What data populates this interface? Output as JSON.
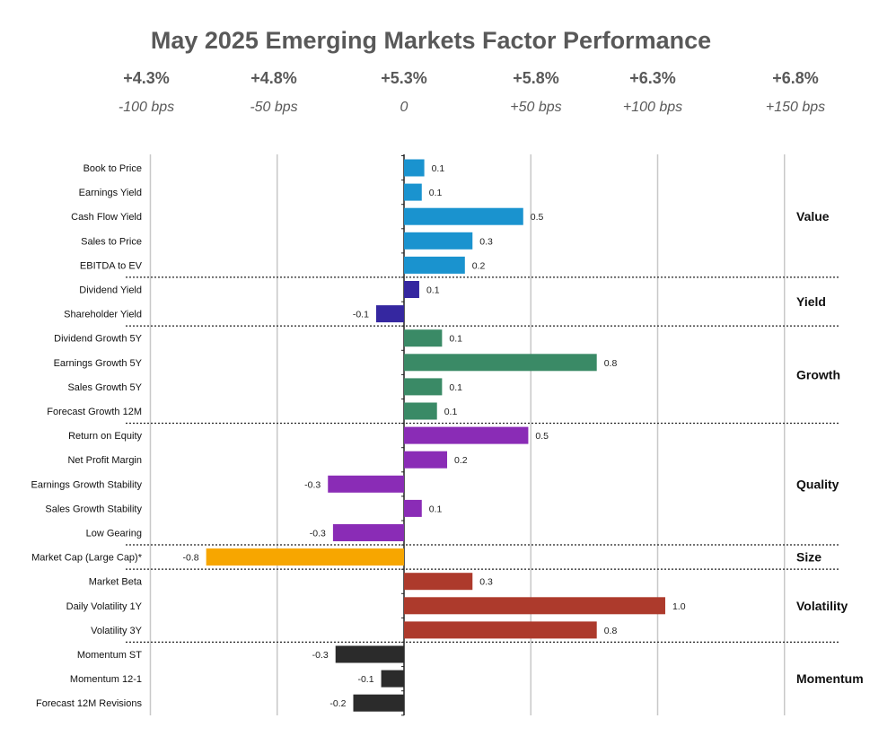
{
  "chart_data": {
    "type": "bar",
    "orientation": "horizontal",
    "title": "May 2025 Emerging Markets Factor Performance",
    "scenarios": [
      {
        "top": "+4.3%",
        "bottom": "-100 bps"
      },
      {
        "top": "+4.8%",
        "bottom": "-50 bps"
      },
      {
        "top": "+5.3%",
        "bottom": "0"
      },
      {
        "top": "+5.8%",
        "bottom": "+50 bps"
      },
      {
        "top": "+6.3%",
        "bottom": "+100 bps"
      },
      {
        "top": "+6.8%",
        "bottom": "+150 bps"
      }
    ],
    "xlim": [
      -1.0,
      1.5
    ],
    "gridlines": [
      -1.0,
      -0.5,
      0,
      0.5,
      1.0,
      1.5
    ],
    "grid": true,
    "categories": [
      "Book to Price",
      "Earnings Yield",
      "Cash Flow Yield",
      "Sales to Price",
      "EBITDA to EV",
      "Dividend Yield",
      "Shareholder Yield",
      "Dividend Growth 5Y",
      "Earnings Growth 5Y",
      "Sales Growth 5Y",
      "Forecast Growth 12M",
      "Return on Equity",
      "Net Profit Margin",
      "Earnings Growth Stability",
      "Sales Growth Stability",
      "Low Gearing",
      "Market Cap (Large Cap)*",
      "Market Beta",
      "Daily Volatility 1Y",
      "Volatility 3Y",
      "Momentum ST",
      "Momentum 12-1",
      "Forecast 12M Revisions"
    ],
    "values": [
      0.08,
      0.07,
      0.47,
      0.27,
      0.24,
      0.06,
      -0.11,
      0.15,
      0.76,
      0.15,
      0.13,
      0.49,
      0.17,
      -0.3,
      0.07,
      -0.28,
      -0.78,
      0.27,
      1.03,
      0.76,
      -0.27,
      -0.09,
      -0.2
    ],
    "data_labels": [
      "0.1",
      "0.1",
      "0.5",
      "0.3",
      "0.2",
      "0.1",
      "-0.1",
      "0.1",
      "0.8",
      "0.1",
      "0.1",
      "0.5",
      "0.2",
      "-0.3",
      "0.1",
      "-0.3",
      "-0.8",
      "0.3",
      "1.0",
      "0.8",
      "-0.3",
      "-0.1",
      "-0.2"
    ],
    "groups": [
      {
        "name": "Value",
        "start": 0,
        "end": 4,
        "color": "#1a93cf"
      },
      {
        "name": "Yield",
        "start": 5,
        "end": 6,
        "color": "#3527a0"
      },
      {
        "name": "Growth",
        "start": 7,
        "end": 10,
        "color": "#3a8a66"
      },
      {
        "name": "Quality",
        "start": 11,
        "end": 15,
        "color": "#8a2cb6"
      },
      {
        "name": "Size",
        "start": 16,
        "end": 16,
        "color": "#f7a600"
      },
      {
        "name": "Volatility",
        "start": 17,
        "end": 19,
        "color": "#ad3a2c"
      },
      {
        "name": "Momentum",
        "start": 20,
        "end": 22,
        "color": "#2b2b2b"
      }
    ]
  }
}
